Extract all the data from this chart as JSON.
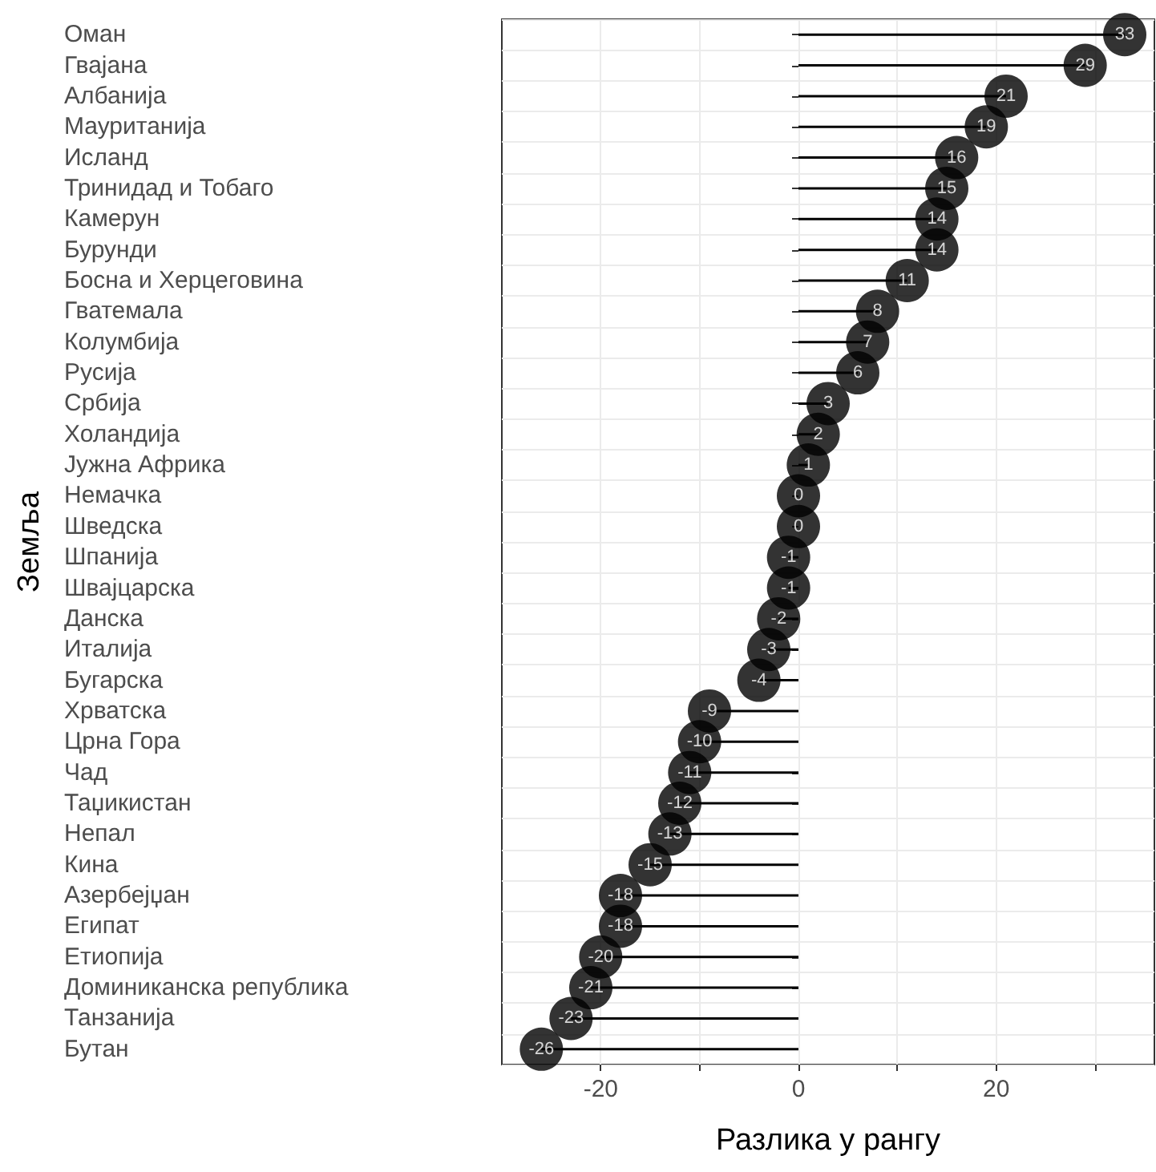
{
  "chart_data": {
    "type": "lollipop",
    "orientation": "horizontal",
    "xlabel": "Разлика у рангу",
    "ylabel": "Земља",
    "categories": [
      "Оман",
      "Гвајана",
      "Албанија",
      "Мауританија",
      "Исланд",
      "Тринидад и Тобаго",
      "Камерун",
      "Бурунди",
      "Босна и Херцеговина",
      "Гватемала",
      "Колумбија",
      "Русија",
      "Србија",
      "Холандија",
      "Јужна Африка",
      "Немачка",
      "Шведска",
      "Шпанија",
      "Швајцарска",
      "Данска",
      "Италија",
      "Бугарска",
      "Хрватска",
      "Црна Гора",
      "Чад",
      "Таџикистан",
      "Непал",
      "Кина",
      "Азербејџан",
      "Египат",
      "Етиопија",
      "Доминиканска република",
      "Танзанија",
      "Бутан"
    ],
    "values": [
      33,
      29,
      21,
      19,
      16,
      15,
      14,
      14,
      11,
      8,
      7,
      6,
      3,
      2,
      1,
      0,
      0,
      -1,
      -1,
      -2,
      -3,
      -4,
      -9,
      -10,
      -11,
      -12,
      -13,
      -15,
      -18,
      -18,
      -20,
      -21,
      -23,
      -26
    ],
    "color": "#000000",
    "data_labels": true,
    "marker": "circle",
    "grid": true,
    "xlim": [
      -30,
      36
    ],
    "xticks": [
      {
        "value": -20,
        "label": "-20"
      },
      {
        "value": -10,
        "label": null
      },
      {
        "value": 0,
        "label": "0"
      },
      {
        "value": 10,
        "label": null
      },
      {
        "value": 20,
        "label": "20"
      },
      {
        "value": 30,
        "label": null
      }
    ]
  }
}
